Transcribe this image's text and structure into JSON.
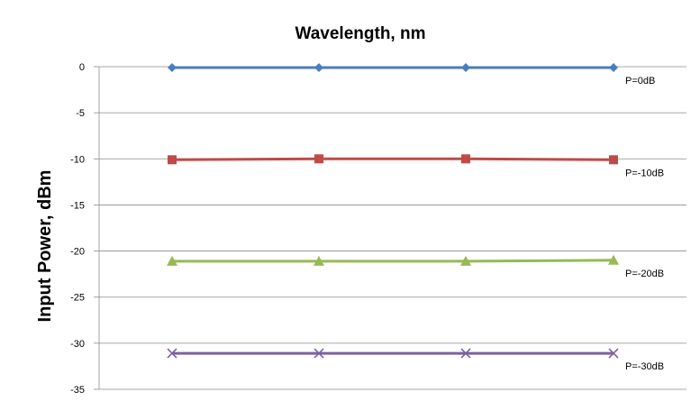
{
  "chart_data": {
    "type": "line",
    "title": "Wavelength, nm",
    "xlabel": "",
    "ylabel": "Input Power, dBm",
    "ylim": [
      -35,
      0
    ],
    "y_ticks": [
      "0",
      "-5",
      "-10",
      "-15",
      "-20",
      "-25",
      "-30",
      "-35"
    ],
    "y_tick_values": [
      0,
      -5,
      -10,
      -15,
      -20,
      -25,
      -30,
      -35
    ],
    "categories": [
      "",
      "",
      "",
      ""
    ],
    "grid": true,
    "legend": "none",
    "series": [
      {
        "name": "P=0dB",
        "values": [
          -0.1,
          -0.1,
          -0.1,
          -0.1
        ],
        "color": "#4a7ebb",
        "marker": "diamond"
      },
      {
        "name": "P=-10dB",
        "values": [
          -10.1,
          -10.0,
          -10.0,
          -10.1
        ],
        "color": "#be4b48",
        "marker": "square"
      },
      {
        "name": "P=-20dB",
        "values": [
          -21.1,
          -21.1,
          -21.1,
          -21.0
        ],
        "color": "#98b954",
        "marker": "triangle"
      },
      {
        "name": "P=-30dB",
        "values": [
          -31.1,
          -31.1,
          -31.1,
          -31.1
        ],
        "color": "#7d60a0",
        "marker": "x"
      }
    ]
  }
}
